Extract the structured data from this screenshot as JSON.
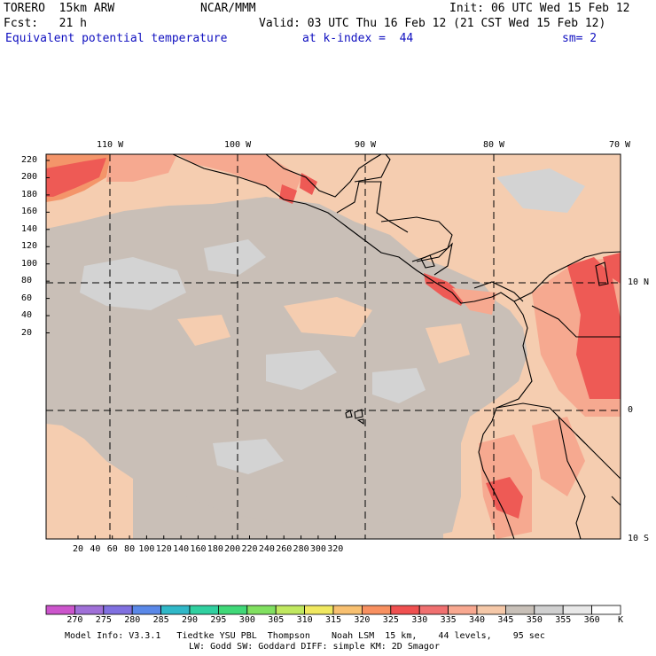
{
  "header": {
    "model_line1": "TORERO  15km ARW",
    "center_line1": "NCAR/MMM",
    "init": "Init: 06 UTC Wed 15 Feb 12",
    "fcst": "Fcst:   21 h",
    "valid": "Valid: 03 UTC Thu 16 Feb 12 (21 CST Wed 15 Feb 12)",
    "field": "Equivalent potential temperature",
    "level": "at k-index =  44",
    "smooth": "sm= 2"
  },
  "axes": {
    "top_lon_labels": [
      "110 W",
      "100 W",
      "90 W",
      "80 W",
      "70 W"
    ],
    "right_lat_labels": [
      "10 N",
      "0",
      "10 S"
    ],
    "y_ticks": [
      "220",
      "200",
      "180",
      "160",
      "140",
      "120",
      "100",
      "80",
      "60",
      "40",
      "20"
    ],
    "x_ticks": [
      "20",
      "40",
      "60",
      "80",
      "100",
      "120",
      "140",
      "160",
      "180",
      "200",
      "220",
      "240",
      "260",
      "280",
      "300",
      "320"
    ]
  },
  "colorbar": {
    "labels": [
      "270",
      "275",
      "280",
      "285",
      "290",
      "295",
      "300",
      "305",
      "310",
      "315",
      "320",
      "325",
      "330",
      "335",
      "340",
      "345",
      "350",
      "355",
      "360"
    ],
    "unit": "K",
    "colors": [
      "#cc55cc",
      "#a070d8",
      "#8070e0",
      "#5a88e8",
      "#30b8c8",
      "#30d0a0",
      "#40d878",
      "#80e060",
      "#c0e860",
      "#f0e860",
      "#f8c070",
      "#f89060",
      "#f05050",
      "#f07070",
      "#f8a890",
      "#f5c8a8",
      "#c8c0b8",
      "#d0d0d0",
      "#e8e8e8",
      "#ffffff"
    ]
  },
  "footer": {
    "line1": "Model Info: V3.3.1   Tiedtke YSU PBL  Thompson    Noah LSM  15 km,    44 levels,    95 sec",
    "line2": "LW: Godd SW: Goddard DIFF: simple KM: 2D Smagor"
  },
  "map_colors": {
    "base": "#f5cdb0",
    "gray": "#c9bfb7",
    "light_gray": "#d3d3d3",
    "salmon": "#f6a990",
    "red_light": "#f27a6c",
    "red": "#ee5a55",
    "orange": "#f4956a"
  }
}
